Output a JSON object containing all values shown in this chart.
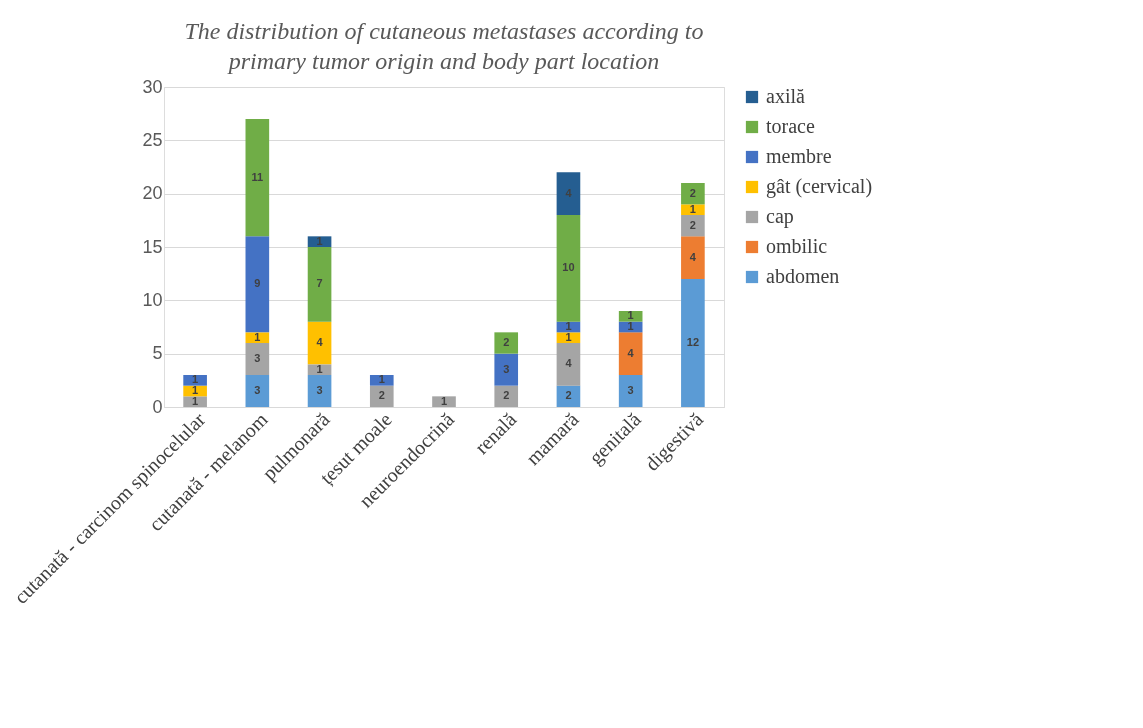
{
  "chart_data": {
    "type": "bar",
    "stacked": true,
    "title": "The distribution of cutaneous metastases according to primary tumor origin and body part location",
    "categories": [
      "cutanată - carcinom spinocelular",
      "cutanată - melanom",
      "pulmonară",
      "țesut moale",
      "neuroendocrină",
      "renală",
      "mamară",
      "genitală",
      "digestivă"
    ],
    "series": [
      {
        "name": "abdomen",
        "color": "#5b9bd5",
        "values": [
          null,
          3,
          3,
          null,
          null,
          null,
          2,
          3,
          12
        ]
      },
      {
        "name": "ombilic",
        "color": "#ed7d31",
        "values": [
          null,
          null,
          null,
          null,
          null,
          null,
          null,
          4,
          4
        ]
      },
      {
        "name": "cap",
        "color": "#a5a5a5",
        "values": [
          1,
          3,
          1,
          2,
          1,
          2,
          4,
          null,
          2
        ]
      },
      {
        "name": "gât (cervical)",
        "color": "#ffc000",
        "values": [
          1,
          1,
          4,
          null,
          null,
          null,
          1,
          null,
          1
        ]
      },
      {
        "name": "membre",
        "color": "#4472c4",
        "values": [
          1,
          9,
          null,
          1,
          null,
          3,
          1,
          1,
          null
        ]
      },
      {
        "name": "torace",
        "color": "#70ad47",
        "values": [
          null,
          11,
          7,
          null,
          null,
          2,
          10,
          1,
          2
        ]
      },
      {
        "name": "axilă",
        "color": "#255e91",
        "values": [
          null,
          null,
          1,
          null,
          null,
          null,
          4,
          null,
          null
        ]
      }
    ],
    "ylim": [
      0,
      30
    ],
    "yticks": [
      0,
      5,
      10,
      15,
      20,
      25,
      30
    ],
    "grid": "y",
    "legend": "right",
    "data_labels": true
  }
}
